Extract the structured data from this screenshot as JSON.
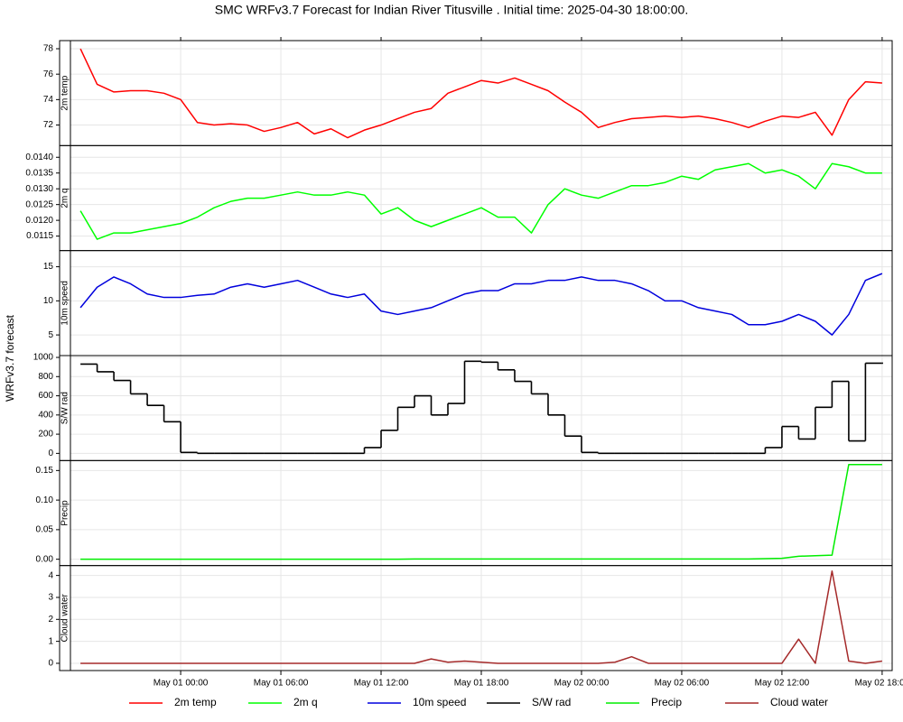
{
  "title": "SMC WRFv3.7 Forecast for Indian River Titusville .  Initial time:  2025-04-30 18:00:00.",
  "ylabel": "WRFv3.7 forecast",
  "chart_data": [
    {
      "type": "line",
      "x": [
        0,
        1,
        2,
        3,
        4,
        5,
        6,
        7,
        8,
        9,
        10,
        11,
        12,
        13,
        14,
        15,
        16,
        17,
        18,
        19,
        20,
        21,
        22,
        23,
        24,
        25,
        26,
        27,
        28,
        29,
        30,
        31,
        32,
        33,
        34,
        35,
        36,
        37,
        38,
        39,
        40,
        41,
        42,
        43,
        44,
        45,
        46,
        47,
        48
      ],
      "xlim": [
        -0.6,
        48.6
      ],
      "ylim": [
        70.38,
        78.64
      ],
      "yticks": [
        72,
        74,
        76,
        78
      ],
      "grid": true,
      "series": [
        {
          "name": "2m temp",
          "color": "#ff0000",
          "values": [
            78,
            75.2,
            74.6,
            74.7,
            74.7,
            74.5,
            74,
            72.2,
            72,
            72.1,
            72,
            71.5,
            71.8,
            72.2,
            71.3,
            71.7,
            71,
            71.6,
            72,
            72.5,
            73,
            73.3,
            74.5,
            75,
            75.5,
            75.3,
            75.7,
            75.2,
            74.7,
            73.8,
            73,
            71.8,
            72.2,
            72.5,
            72.6,
            72.7,
            72.6,
            72.7,
            72.5,
            72.2,
            71.8,
            72.3,
            72.7,
            72.6,
            73,
            71.2,
            74,
            75.4,
            75.3
          ]
        }
      ]
    },
    {
      "type": "line",
      "x": [
        0,
        1,
        2,
        3,
        4,
        5,
        6,
        7,
        8,
        9,
        10,
        11,
        12,
        13,
        14,
        15,
        16,
        17,
        18,
        19,
        20,
        21,
        22,
        23,
        24,
        25,
        26,
        27,
        28,
        29,
        30,
        31,
        32,
        33,
        34,
        35,
        36,
        37,
        38,
        39,
        40,
        41,
        42,
        43,
        44,
        45,
        46,
        47,
        48
      ],
      "xlim": [
        -0.6,
        48.6
      ],
      "ylim": [
        0.01104,
        0.01437
      ],
      "yticks": [
        0.0115,
        {
          "value": 0.012,
          "label": "0.0120"
        },
        0.0125,
        {
          "value": 0.013,
          "label": "0.0130"
        },
        0.0135,
        {
          "value": 0.014,
          "label": "0.0140"
        }
      ],
      "grid": true,
      "series": [
        {
          "name": "2m q",
          "color": "#00ff00",
          "values": [
            0.0123,
            0.0114,
            0.0116,
            0.0116,
            0.0117,
            0.0118,
            0.0119,
            0.0121,
            0.0124,
            0.0126,
            0.0127,
            0.0127,
            0.0128,
            0.0129,
            0.0128,
            0.0128,
            0.0129,
            0.0128,
            0.0122,
            0.0124,
            0.012,
            0.0118,
            0.012,
            0.0122,
            0.0124,
            0.0121,
            0.0121,
            0.0116,
            0.0125,
            0.013,
            0.0128,
            0.0127,
            0.0129,
            0.0131,
            0.0131,
            0.0132,
            0.0134,
            0.0133,
            0.0136,
            0.0137,
            0.0138,
            0.0135,
            0.0136,
            0.0134,
            0.013,
            0.0138,
            0.0137,
            0.0135,
            0.0135
          ]
        }
      ]
    },
    {
      "type": "line",
      "x": [
        0,
        1,
        2,
        3,
        4,
        5,
        6,
        7,
        8,
        9,
        10,
        11,
        12,
        13,
        14,
        15,
        16,
        17,
        18,
        19,
        20,
        21,
        22,
        23,
        24,
        25,
        26,
        27,
        28,
        29,
        30,
        31,
        32,
        33,
        34,
        35,
        36,
        37,
        38,
        39,
        40,
        41,
        42,
        43,
        44,
        45,
        46,
        47,
        48
      ],
      "xlim": [
        -0.6,
        48.6
      ],
      "ylim": [
        1.97,
        17.37
      ],
      "yticks": [
        5,
        10,
        15
      ],
      "grid": true,
      "series": [
        {
          "name": "10m speed",
          "color": "#0000dd",
          "values": [
            9,
            12,
            13.5,
            12.5,
            11,
            10.5,
            10.5,
            10.8,
            11,
            12,
            12.5,
            12,
            12.5,
            13,
            12,
            11,
            10.5,
            11,
            8.5,
            8,
            8.5,
            9,
            10,
            11,
            11.5,
            11.5,
            12.5,
            12.5,
            13,
            13,
            13.5,
            13,
            13,
            12.5,
            11.5,
            10,
            10,
            9,
            8.5,
            8,
            6.5,
            6.5,
            7,
            8,
            7,
            5,
            8,
            13,
            14
          ]
        }
      ]
    },
    {
      "type": "line",
      "step": true,
      "x": [
        0,
        1,
        2,
        3,
        4,
        5,
        6,
        7,
        8,
        9,
        10,
        11,
        12,
        13,
        14,
        15,
        16,
        17,
        18,
        19,
        20,
        21,
        22,
        23,
        24,
        25,
        26,
        27,
        28,
        29,
        30,
        31,
        32,
        33,
        34,
        35,
        36,
        37,
        38,
        39,
        40,
        41,
        42,
        43,
        44,
        45,
        46,
        47,
        48
      ],
      "xlim": [
        -0.6,
        48.6
      ],
      "ylim": [
        -75,
        1019
      ],
      "yticks": [
        0,
        200,
        400,
        600,
        800,
        1000
      ],
      "grid": true,
      "series": [
        {
          "name": "S/W rad",
          "color": "#000000",
          "values": [
            930,
            850,
            760,
            620,
            500,
            330,
            10,
            0,
            0,
            0,
            0,
            0,
            0,
            0,
            0,
            0,
            0,
            60,
            240,
            480,
            600,
            400,
            520,
            960,
            950,
            870,
            750,
            620,
            400,
            180,
            10,
            0,
            0,
            0,
            0,
            0,
            0,
            0,
            0,
            0,
            0,
            60,
            280,
            150,
            480,
            750,
            130,
            940,
            940
          ]
        }
      ]
    },
    {
      "type": "line",
      "x": [
        0,
        1,
        2,
        3,
        4,
        5,
        6,
        7,
        8,
        9,
        10,
        11,
        12,
        13,
        14,
        15,
        16,
        17,
        18,
        19,
        20,
        21,
        22,
        23,
        24,
        25,
        26,
        27,
        28,
        29,
        30,
        31,
        32,
        33,
        34,
        35,
        36,
        37,
        38,
        39,
        40,
        41,
        42,
        43,
        44,
        45,
        46,
        47,
        48
      ],
      "xlim": [
        -0.6,
        48.6
      ],
      "ylim": [
        -0.0107,
        0.1668
      ],
      "yticks": [
        {
          "value": 0,
          "label": "0.00"
        },
        0.05,
        {
          "value": 0.1,
          "label": "0.10"
        },
        0.15
      ],
      "grid": true,
      "series": [
        {
          "name": "Precip",
          "color": "#00ee00",
          "values": [
            0,
            0,
            0,
            0,
            0,
            0,
            0,
            0,
            0,
            0,
            0,
            0,
            0,
            0,
            0,
            0,
            0,
            0,
            0,
            0,
            0.0005,
            0.0005,
            0.0005,
            0.0005,
            0.0005,
            0.0005,
            0.0005,
            0.0005,
            0.0005,
            0.0005,
            0.0005,
            0.0005,
            0.0005,
            0.0005,
            0.0005,
            0.0005,
            0.0005,
            0.0005,
            0.0005,
            0.0005,
            0.0005,
            0.001,
            0.0015,
            0.005,
            0.006,
            0.007,
            0.16,
            0.16,
            0.16
          ]
        }
      ]
    },
    {
      "type": "line",
      "x": [
        0,
        1,
        2,
        3,
        4,
        5,
        6,
        7,
        8,
        9,
        10,
        11,
        12,
        13,
        14,
        15,
        16,
        17,
        18,
        19,
        20,
        21,
        22,
        23,
        24,
        25,
        26,
        27,
        28,
        29,
        30,
        31,
        32,
        33,
        34,
        35,
        36,
        37,
        38,
        39,
        40,
        41,
        42,
        43,
        44,
        45,
        46,
        47,
        48
      ],
      "xlim": [
        -0.6,
        48.6
      ],
      "ylim": [
        -0.33,
        4.45
      ],
      "yticks": [
        0,
        1,
        2,
        3,
        4
      ],
      "grid": true,
      "xticks": [
        {
          "value": 6,
          "label": "May 01 00:00"
        },
        {
          "value": 12,
          "label": "May 01 06:00"
        },
        {
          "value": 18,
          "label": "May 01 12:00"
        },
        {
          "value": 24,
          "label": "May 01 18:00"
        },
        {
          "value": 30,
          "label": "May 02 00:00"
        },
        {
          "value": 36,
          "label": "May 02 06:00"
        },
        {
          "value": 42,
          "label": "May 02 12:00"
        },
        {
          "value": 48,
          "label": "May 02 18:00"
        }
      ],
      "series": [
        {
          "name": "Cloud water",
          "color": "#a52a2a",
          "values": [
            0,
            0,
            0,
            0,
            0,
            0,
            0,
            0,
            0,
            0,
            0,
            0,
            0,
            0,
            0,
            0,
            0,
            0,
            0,
            0,
            0,
            0.2,
            0.05,
            0.1,
            0.05,
            0,
            0,
            0,
            0,
            0,
            0,
            0,
            0.05,
            0.3,
            0,
            0,
            0,
            0,
            0,
            0,
            0,
            0,
            0,
            1.1,
            0,
            4.2,
            0.1,
            0,
            0.1
          ]
        }
      ]
    }
  ]
}
